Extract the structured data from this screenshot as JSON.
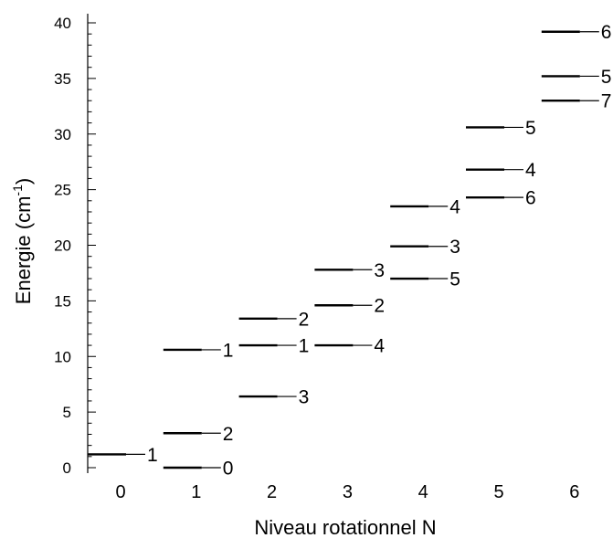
{
  "chart_data": {
    "type": "scatter",
    "marker": "horizontal-level-line",
    "xlabel": "Niveau rotationnel N",
    "ylabel_main": "Energie (cm",
    "ylabel_sup": "-1",
    "ylabel_close": ")",
    "xlim": [
      -0.45,
      6.45
    ],
    "ylim": [
      0,
      40
    ],
    "x_ticks": [
      "0",
      "1",
      "2",
      "3",
      "4",
      "5",
      "6"
    ],
    "y_ticks": [
      "0",
      "5",
      "10",
      "15",
      "20",
      "25",
      "30",
      "35",
      "40"
    ],
    "y_minor_step": 1,
    "grid": false,
    "levels": [
      {
        "N": 0,
        "E": 1.2,
        "label": "1"
      },
      {
        "N": 1,
        "E": 0.0,
        "label": "0"
      },
      {
        "N": 1,
        "E": 3.1,
        "label": "2"
      },
      {
        "N": 1,
        "E": 10.6,
        "label": "1"
      },
      {
        "N": 2,
        "E": 6.4,
        "label": "3"
      },
      {
        "N": 2,
        "E": 11.0,
        "label": "1"
      },
      {
        "N": 2,
        "E": 13.4,
        "label": "2"
      },
      {
        "N": 3,
        "E": 11.0,
        "label": "4"
      },
      {
        "N": 3,
        "E": 14.6,
        "label": "2"
      },
      {
        "N": 3,
        "E": 17.8,
        "label": "3"
      },
      {
        "N": 4,
        "E": 17.0,
        "label": "5"
      },
      {
        "N": 4,
        "E": 19.9,
        "label": "3"
      },
      {
        "N": 4,
        "E": 23.5,
        "label": "4"
      },
      {
        "N": 5,
        "E": 24.3,
        "label": "6"
      },
      {
        "N": 5,
        "E": 26.8,
        "label": "4"
      },
      {
        "N": 5,
        "E": 30.6,
        "label": "5"
      },
      {
        "N": 6,
        "E": 33.0,
        "label": "7"
      },
      {
        "N": 6,
        "E": 35.2,
        "label": "5"
      },
      {
        "N": 6,
        "E": 39.2,
        "label": "6"
      }
    ]
  }
}
